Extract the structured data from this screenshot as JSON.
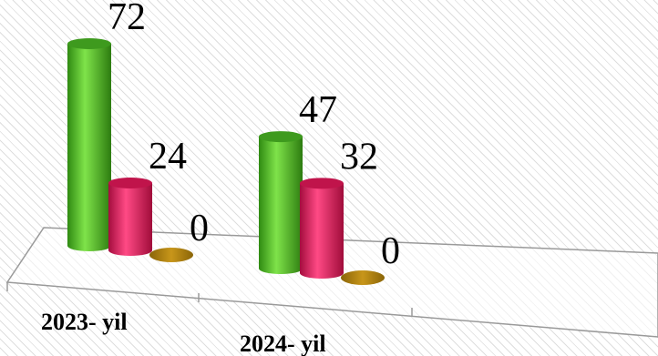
{
  "chart_data": {
    "type": "bar",
    "categories": [
      "2023- yil",
      "2024- yil"
    ],
    "series": [
      {
        "values": [
          72,
          47
        ],
        "color": "#4fbe2c"
      },
      {
        "values": [
          24,
          32
        ],
        "color": "#e8175d"
      },
      {
        "values": [
          0,
          0
        ],
        "color": "#b8860b"
      }
    ],
    "ylim": [
      0,
      72
    ],
    "grid": false,
    "legend": "none",
    "style": "3d-cylinder",
    "background": "diagonal-hatch"
  }
}
